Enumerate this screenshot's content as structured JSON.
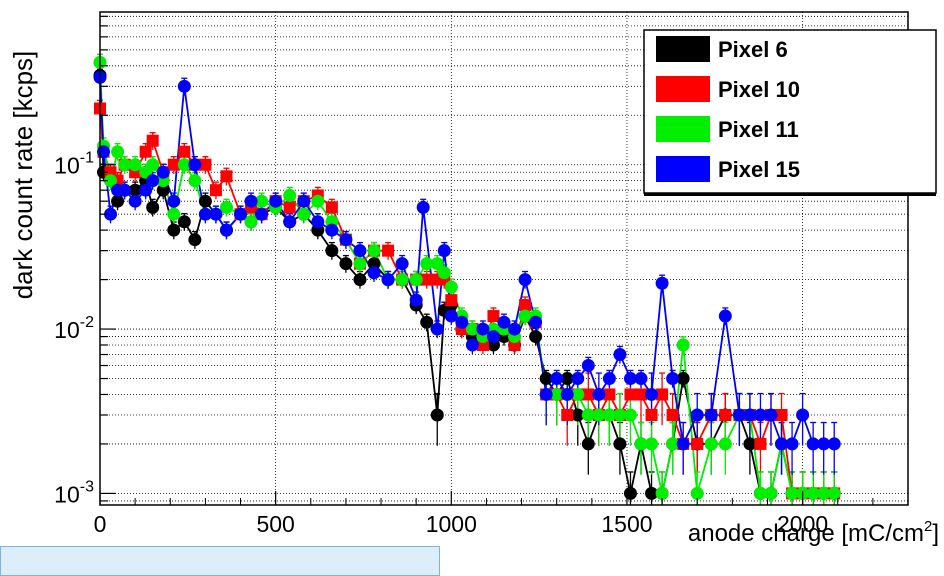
{
  "chart_data": {
    "type": "scatter",
    "title": "",
    "xlabel": "anode charge [mC/cm",
    "xlabel_sup": "2",
    "xlabel_end": "]",
    "ylabel": "dark count rate [kcps]",
    "xlim": [
      0,
      2300
    ],
    "ylim": [
      0.00085,
      0.85
    ],
    "ylog": true,
    "grid": true,
    "legend_position": "top-right",
    "x_ticks": [
      0,
      500,
      1000,
      1500,
      2000
    ],
    "x_tick_labels": [
      "0",
      "500",
      "1000",
      "1500",
      "2000"
    ],
    "y_ticks": [
      {
        "value": 0.1,
        "mantissa": "10",
        "exponent": "-1"
      },
      {
        "value": 0.01,
        "mantissa": "10",
        "exponent": "-2"
      },
      {
        "value": 0.001,
        "mantissa": "10",
        "exponent": "-3"
      }
    ],
    "series": [
      {
        "name": "Pixel 6",
        "color": "#000000",
        "x": [
          0,
          10,
          30,
          50,
          70,
          100,
          130,
          150,
          180,
          210,
          240,
          270,
          300,
          330,
          360,
          400,
          430,
          460,
          500,
          540,
          580,
          620,
          660,
          700,
          740,
          780,
          820,
          860,
          900,
          930,
          960,
          980,
          1000,
          1030,
          1060,
          1090,
          1120,
          1150,
          1180,
          1210,
          1240,
          1270,
          1300,
          1330,
          1360,
          1390,
          1420,
          1450,
          1480,
          1510,
          1540,
          1570,
          1600,
          1630,
          1660,
          1700,
          1740,
          1780,
          1820,
          1850,
          1880,
          1910,
          1940,
          1970,
          2000,
          2030,
          2060,
          2090
        ],
        "y": [
          0.35,
          0.09,
          0.08,
          0.06,
          0.07,
          0.07,
          0.08,
          0.055,
          0.07,
          0.04,
          0.045,
          0.035,
          0.06,
          0.05,
          0.04,
          0.05,
          0.045,
          0.05,
          0.055,
          0.045,
          0.05,
          0.04,
          0.03,
          0.025,
          0.02,
          0.025,
          0.02,
          0.02,
          0.014,
          0.011,
          0.003,
          0.013,
          0.014,
          0.01,
          0.009,
          0.009,
          0.008,
          0.009,
          0.008,
          0.012,
          0.009,
          0.005,
          0.004,
          0.005,
          0.003,
          0.002,
          0.003,
          0.003,
          0.002,
          0.001,
          0.002,
          0.001,
          0.001,
          0.002,
          0.005,
          0.002,
          0.002,
          0.003,
          0.003,
          0.002,
          0.001,
          0.001,
          0.002,
          0.001,
          0.001,
          0.001,
          0.001,
          0.001
        ]
      },
      {
        "name": "Pixel 10",
        "color": "#ff0000",
        "x": [
          0,
          10,
          30,
          50,
          70,
          100,
          130,
          150,
          180,
          210,
          240,
          270,
          300,
          330,
          360,
          400,
          430,
          460,
          500,
          540,
          580,
          620,
          660,
          700,
          740,
          780,
          820,
          860,
          900,
          930,
          960,
          980,
          1000,
          1030,
          1060,
          1090,
          1120,
          1150,
          1180,
          1210,
          1240,
          1270,
          1300,
          1330,
          1360,
          1390,
          1420,
          1450,
          1480,
          1510,
          1540,
          1570,
          1600,
          1630,
          1660,
          1700,
          1740,
          1780,
          1820,
          1850,
          1880,
          1910,
          1940,
          1970,
          2000,
          2030,
          2060,
          2090
        ],
        "y": [
          0.22,
          0.12,
          0.09,
          0.08,
          0.1,
          0.09,
          0.12,
          0.14,
          0.09,
          0.1,
          0.12,
          0.1,
          0.1,
          0.07,
          0.085,
          0.05,
          0.055,
          0.05,
          0.06,
          0.055,
          0.06,
          0.065,
          0.055,
          0.035,
          0.025,
          0.03,
          0.03,
          0.02,
          0.02,
          0.02,
          0.02,
          0.02,
          0.015,
          0.01,
          0.01,
          0.008,
          0.012,
          0.01,
          0.008,
          0.014,
          0.011,
          0.004,
          0.004,
          0.003,
          0.004,
          0.004,
          0.003,
          0.004,
          0.003,
          0.004,
          0.004,
          0.003,
          0.004,
          0.003,
          0.002,
          0.002,
          0.003,
          0.003,
          0.003,
          0.003,
          0.002,
          0.003,
          0.003,
          0.001,
          0.001,
          0.001,
          0.001,
          0.001
        ]
      },
      {
        "name": "Pixel 11",
        "color": "#00ee00",
        "x": [
          0,
          10,
          30,
          50,
          70,
          100,
          130,
          150,
          180,
          210,
          240,
          270,
          300,
          330,
          360,
          400,
          430,
          460,
          500,
          540,
          580,
          620,
          660,
          700,
          740,
          780,
          820,
          860,
          900,
          930,
          960,
          980,
          1000,
          1030,
          1060,
          1090,
          1120,
          1150,
          1180,
          1210,
          1240,
          1270,
          1300,
          1330,
          1360,
          1390,
          1420,
          1450,
          1480,
          1510,
          1540,
          1570,
          1600,
          1630,
          1660,
          1700,
          1740,
          1780,
          1820,
          1850,
          1880,
          1910,
          1940,
          1970,
          2000,
          2030,
          2060,
          2090
        ],
        "y": [
          0.42,
          0.13,
          0.08,
          0.12,
          0.1,
          0.1,
          0.09,
          0.1,
          0.08,
          0.05,
          0.1,
          0.08,
          0.05,
          0.05,
          0.055,
          0.05,
          0.045,
          0.06,
          0.055,
          0.065,
          0.05,
          0.06,
          0.045,
          0.035,
          0.025,
          0.03,
          0.02,
          0.02,
          0.02,
          0.025,
          0.025,
          0.022,
          0.018,
          0.012,
          0.01,
          0.009,
          0.01,
          0.01,
          0.009,
          0.012,
          0.012,
          0.004,
          0.004,
          0.004,
          0.004,
          0.003,
          0.003,
          0.003,
          0.003,
          0.003,
          0.002,
          0.002,
          0.001,
          0.002,
          0.008,
          0.001,
          0.002,
          0.002,
          0.003,
          0.003,
          0.001,
          0.001,
          0.002,
          0.001,
          0.001,
          0.001,
          0.001,
          0.001
        ]
      },
      {
        "name": "Pixel 15",
        "color": "#0000ff",
        "x": [
          0,
          10,
          30,
          50,
          70,
          100,
          130,
          150,
          180,
          210,
          240,
          270,
          300,
          330,
          360,
          400,
          430,
          460,
          500,
          540,
          580,
          620,
          660,
          700,
          740,
          780,
          820,
          860,
          900,
          920,
          960,
          980,
          1000,
          1030,
          1060,
          1090,
          1120,
          1150,
          1180,
          1210,
          1240,
          1270,
          1300,
          1330,
          1360,
          1390,
          1420,
          1450,
          1480,
          1510,
          1540,
          1570,
          1600,
          1630,
          1660,
          1700,
          1740,
          1780,
          1820,
          1850,
          1880,
          1910,
          1940,
          1970,
          2000,
          2030,
          2060,
          2090
        ],
        "y": [
          0.34,
          0.12,
          0.05,
          0.07,
          0.07,
          0.06,
          0.07,
          0.08,
          0.09,
          0.06,
          0.3,
          0.1,
          0.05,
          0.05,
          0.04,
          0.05,
          0.06,
          0.05,
          0.06,
          0.045,
          0.06,
          0.045,
          0.04,
          0.035,
          0.03,
          0.022,
          0.02,
          0.025,
          0.015,
          0.055,
          0.01,
          0.03,
          0.012,
          0.011,
          0.008,
          0.01,
          0.009,
          0.011,
          0.01,
          0.02,
          0.011,
          0.004,
          0.005,
          0.004,
          0.005,
          0.006,
          0.004,
          0.005,
          0.007,
          0.005,
          0.005,
          0.004,
          0.019,
          0.005,
          0.002,
          0.003,
          0.003,
          0.012,
          0.003,
          0.003,
          0.003,
          0.003,
          0.002,
          0.002,
          0.003,
          0.002,
          0.002,
          0.002
        ]
      }
    ]
  }
}
